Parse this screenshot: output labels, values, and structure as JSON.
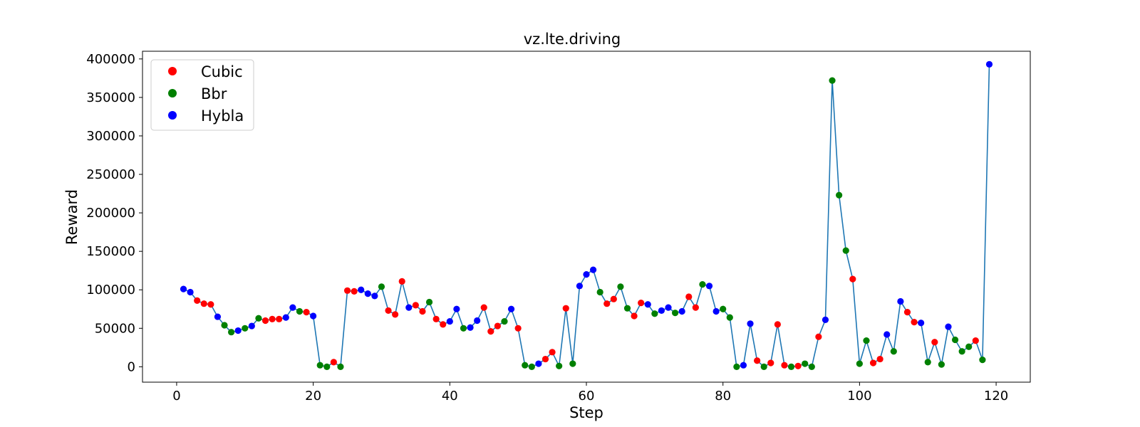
{
  "chart_data": {
    "type": "scatter",
    "title": "vz.lte.driving",
    "xlabel": "Step",
    "ylabel": "Reward",
    "xlim": [
      -5,
      125
    ],
    "ylim": [
      -20000,
      410000
    ],
    "xticks": [
      "0",
      "20",
      "40",
      "60",
      "80",
      "100",
      "120"
    ],
    "yticks": [
      "0",
      "50000",
      "100000",
      "150000",
      "200000",
      "250000",
      "300000",
      "350000",
      "400000"
    ],
    "grid": false,
    "legend_placement": "upper-left",
    "line_color": "#1f77b4",
    "series": [
      {
        "name": "Cubic",
        "color": "#ff0000"
      },
      {
        "name": "Bbr",
        "color": "#008000"
      },
      {
        "name": "Hybla",
        "color": "#0000ff"
      }
    ],
    "points": [
      {
        "x": 1,
        "y": 101000,
        "s": "Hybla"
      },
      {
        "x": 2,
        "y": 97000,
        "s": "Hybla"
      },
      {
        "x": 3,
        "y": 86000,
        "s": "Cubic"
      },
      {
        "x": 4,
        "y": 82000,
        "s": "Cubic"
      },
      {
        "x": 5,
        "y": 81000,
        "s": "Cubic"
      },
      {
        "x": 6,
        "y": 65000,
        "s": "Hybla"
      },
      {
        "x": 7,
        "y": 54000,
        "s": "Bbr"
      },
      {
        "x": 8,
        "y": 45000,
        "s": "Bbr"
      },
      {
        "x": 9,
        "y": 47000,
        "s": "Hybla"
      },
      {
        "x": 10,
        "y": 50000,
        "s": "Bbr"
      },
      {
        "x": 11,
        "y": 53000,
        "s": "Hybla"
      },
      {
        "x": 12,
        "y": 63000,
        "s": "Bbr"
      },
      {
        "x": 13,
        "y": 60000,
        "s": "Cubic"
      },
      {
        "x": 14,
        "y": 62000,
        "s": "Cubic"
      },
      {
        "x": 15,
        "y": 62000,
        "s": "Cubic"
      },
      {
        "x": 16,
        "y": 64000,
        "s": "Hybla"
      },
      {
        "x": 17,
        "y": 77000,
        "s": "Hybla"
      },
      {
        "x": 18,
        "y": 72000,
        "s": "Bbr"
      },
      {
        "x": 19,
        "y": 71000,
        "s": "Cubic"
      },
      {
        "x": 20,
        "y": 66000,
        "s": "Hybla"
      },
      {
        "x": 21,
        "y": 2000,
        "s": "Bbr"
      },
      {
        "x": 22,
        "y": 0,
        "s": "Bbr"
      },
      {
        "x": 23,
        "y": 6000,
        "s": "Cubic"
      },
      {
        "x": 24,
        "y": 0,
        "s": "Bbr"
      },
      {
        "x": 25,
        "y": 99000,
        "s": "Cubic"
      },
      {
        "x": 26,
        "y": 98000,
        "s": "Cubic"
      },
      {
        "x": 27,
        "y": 100000,
        "s": "Hybla"
      },
      {
        "x": 28,
        "y": 95000,
        "s": "Hybla"
      },
      {
        "x": 29,
        "y": 92000,
        "s": "Hybla"
      },
      {
        "x": 30,
        "y": 104000,
        "s": "Bbr"
      },
      {
        "x": 31,
        "y": 73000,
        "s": "Cubic"
      },
      {
        "x": 32,
        "y": 68000,
        "s": "Cubic"
      },
      {
        "x": 33,
        "y": 111000,
        "s": "Cubic"
      },
      {
        "x": 34,
        "y": 77000,
        "s": "Hybla"
      },
      {
        "x": 35,
        "y": 80000,
        "s": "Cubic"
      },
      {
        "x": 36,
        "y": 72000,
        "s": "Cubic"
      },
      {
        "x": 37,
        "y": 84000,
        "s": "Bbr"
      },
      {
        "x": 38,
        "y": 62000,
        "s": "Cubic"
      },
      {
        "x": 39,
        "y": 55000,
        "s": "Cubic"
      },
      {
        "x": 40,
        "y": 59000,
        "s": "Hybla"
      },
      {
        "x": 41,
        "y": 75000,
        "s": "Hybla"
      },
      {
        "x": 42,
        "y": 50000,
        "s": "Bbr"
      },
      {
        "x": 43,
        "y": 51000,
        "s": "Hybla"
      },
      {
        "x": 44,
        "y": 60000,
        "s": "Hybla"
      },
      {
        "x": 45,
        "y": 77000,
        "s": "Cubic"
      },
      {
        "x": 46,
        "y": 46000,
        "s": "Cubic"
      },
      {
        "x": 47,
        "y": 53000,
        "s": "Cubic"
      },
      {
        "x": 48,
        "y": 59000,
        "s": "Bbr"
      },
      {
        "x": 49,
        "y": 75000,
        "s": "Hybla"
      },
      {
        "x": 50,
        "y": 50000,
        "s": "Cubic"
      },
      {
        "x": 51,
        "y": 2000,
        "s": "Bbr"
      },
      {
        "x": 52,
        "y": 0,
        "s": "Bbr"
      },
      {
        "x": 53,
        "y": 4000,
        "s": "Hybla"
      },
      {
        "x": 54,
        "y": 10000,
        "s": "Cubic"
      },
      {
        "x": 55,
        "y": 19000,
        "s": "Cubic"
      },
      {
        "x": 56,
        "y": 1000,
        "s": "Bbr"
      },
      {
        "x": 57,
        "y": 76000,
        "s": "Cubic"
      },
      {
        "x": 58,
        "y": 4000,
        "s": "Bbr"
      },
      {
        "x": 59,
        "y": 105000,
        "s": "Hybla"
      },
      {
        "x": 60,
        "y": 120000,
        "s": "Hybla"
      },
      {
        "x": 61,
        "y": 126000,
        "s": "Hybla"
      },
      {
        "x": 62,
        "y": 97000,
        "s": "Bbr"
      },
      {
        "x": 63,
        "y": 82000,
        "s": "Cubic"
      },
      {
        "x": 64,
        "y": 88000,
        "s": "Cubic"
      },
      {
        "x": 65,
        "y": 104000,
        "s": "Bbr"
      },
      {
        "x": 66,
        "y": 76000,
        "s": "Bbr"
      },
      {
        "x": 67,
        "y": 66000,
        "s": "Cubic"
      },
      {
        "x": 68,
        "y": 83000,
        "s": "Cubic"
      },
      {
        "x": 69,
        "y": 81000,
        "s": "Hybla"
      },
      {
        "x": 70,
        "y": 69000,
        "s": "Bbr"
      },
      {
        "x": 71,
        "y": 73000,
        "s": "Hybla"
      },
      {
        "x": 72,
        "y": 77000,
        "s": "Hybla"
      },
      {
        "x": 73,
        "y": 70000,
        "s": "Bbr"
      },
      {
        "x": 74,
        "y": 72000,
        "s": "Hybla"
      },
      {
        "x": 75,
        "y": 91000,
        "s": "Cubic"
      },
      {
        "x": 76,
        "y": 77000,
        "s": "Cubic"
      },
      {
        "x": 77,
        "y": 107000,
        "s": "Bbr"
      },
      {
        "x": 78,
        "y": 105000,
        "s": "Hybla"
      },
      {
        "x": 79,
        "y": 72000,
        "s": "Hybla"
      },
      {
        "x": 80,
        "y": 75000,
        "s": "Bbr"
      },
      {
        "x": 81,
        "y": 64000,
        "s": "Bbr"
      },
      {
        "x": 82,
        "y": 0,
        "s": "Bbr"
      },
      {
        "x": 83,
        "y": 2000,
        "s": "Hybla"
      },
      {
        "x": 84,
        "y": 56000,
        "s": "Hybla"
      },
      {
        "x": 85,
        "y": 8000,
        "s": "Cubic"
      },
      {
        "x": 86,
        "y": 0,
        "s": "Bbr"
      },
      {
        "x": 87,
        "y": 5000,
        "s": "Cubic"
      },
      {
        "x": 88,
        "y": 55000,
        "s": "Cubic"
      },
      {
        "x": 89,
        "y": 2000,
        "s": "Cubic"
      },
      {
        "x": 90,
        "y": 0,
        "s": "Bbr"
      },
      {
        "x": 91,
        "y": 1000,
        "s": "Cubic"
      },
      {
        "x": 92,
        "y": 4000,
        "s": "Bbr"
      },
      {
        "x": 93,
        "y": 0,
        "s": "Bbr"
      },
      {
        "x": 94,
        "y": 39000,
        "s": "Cubic"
      },
      {
        "x": 95,
        "y": 61000,
        "s": "Hybla"
      },
      {
        "x": 96,
        "y": 372000,
        "s": "Bbr"
      },
      {
        "x": 97,
        "y": 223000,
        "s": "Bbr"
      },
      {
        "x": 98,
        "y": 151000,
        "s": "Bbr"
      },
      {
        "x": 99,
        "y": 114000,
        "s": "Cubic"
      },
      {
        "x": 100,
        "y": 4000,
        "s": "Bbr"
      },
      {
        "x": 101,
        "y": 34000,
        "s": "Bbr"
      },
      {
        "x": 102,
        "y": 5000,
        "s": "Cubic"
      },
      {
        "x": 103,
        "y": 10000,
        "s": "Cubic"
      },
      {
        "x": 104,
        "y": 42000,
        "s": "Hybla"
      },
      {
        "x": 105,
        "y": 20000,
        "s": "Bbr"
      },
      {
        "x": 106,
        "y": 85000,
        "s": "Hybla"
      },
      {
        "x": 107,
        "y": 71000,
        "s": "Cubic"
      },
      {
        "x": 108,
        "y": 58000,
        "s": "Cubic"
      },
      {
        "x": 109,
        "y": 57000,
        "s": "Hybla"
      },
      {
        "x": 110,
        "y": 6000,
        "s": "Bbr"
      },
      {
        "x": 111,
        "y": 32000,
        "s": "Cubic"
      },
      {
        "x": 112,
        "y": 3000,
        "s": "Bbr"
      },
      {
        "x": 113,
        "y": 52000,
        "s": "Hybla"
      },
      {
        "x": 114,
        "y": 35000,
        "s": "Bbr"
      },
      {
        "x": 115,
        "y": 20000,
        "s": "Bbr"
      },
      {
        "x": 116,
        "y": 26000,
        "s": "Bbr"
      },
      {
        "x": 117,
        "y": 34000,
        "s": "Cubic"
      },
      {
        "x": 118,
        "y": 9000,
        "s": "Bbr"
      },
      {
        "x": 119,
        "y": 393000,
        "s": "Hybla"
      }
    ]
  }
}
